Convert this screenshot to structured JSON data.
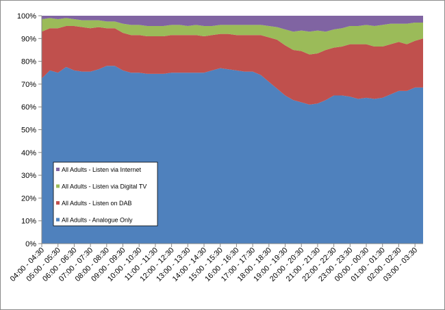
{
  "chart_data": {
    "type": "area",
    "stacked": true,
    "percent_scale": true,
    "categories": [
      "04:00 - 04:30",
      "05:00 - 05:30",
      "06:00 - 06:30",
      "07:00 - 07:30",
      "08:00 - 08:30",
      "09:00 - 09:30",
      "10:00 - 10:30",
      "11:00 - 11:30",
      "12:00 - 12:30",
      "13:00 - 13:30",
      "14:00 - 14:30",
      "15:00 - 15:30",
      "16:00 - 16:30",
      "17:00 - 17:30",
      "18:00 - 18:30",
      "19:00 - 19:30",
      "20:00 - 20:30",
      "21:00 - 21:30",
      "22:00 - 22:30",
      "23:00 - 23:30",
      "00:00 - 00:30",
      "01:00 - 01:30",
      "02:00 - 02:30",
      "03:00 - 03:30"
    ],
    "x_values": [
      0,
      0.5,
      1,
      1.5,
      2,
      2.5,
      3,
      3.5,
      4,
      4.5,
      5,
      5.5,
      6,
      6.5,
      7,
      7.5,
      8,
      8.5,
      9,
      9.5,
      10,
      10.5,
      11,
      11.5,
      12,
      12.5,
      13,
      13.5,
      14,
      14.5,
      15,
      15.5,
      16,
      16.5,
      17,
      17.5,
      18,
      18.5,
      19,
      19.5,
      20,
      20.5,
      21,
      21.5,
      22,
      22.5,
      23,
      23.5
    ],
    "series": [
      {
        "name": "All Adults - Analogue Only",
        "color": "#4f81bd",
        "values": [
          72.5,
          76,
          75,
          77.5,
          76,
          75.5,
          75.5,
          76.5,
          78,
          78,
          76,
          75,
          75,
          74.5,
          74.5,
          74.5,
          75,
          75,
          75,
          75,
          75,
          76,
          77,
          76.5,
          76,
          75.5,
          75.5,
          74,
          71,
          68,
          65,
          63,
          62,
          61,
          61.5,
          63,
          65,
          65,
          64.5,
          63.5,
          64,
          63.5,
          64,
          65.5,
          67,
          67,
          68.5,
          68.5
        ]
      },
      {
        "name": "All Adults - Listen on DAB",
        "color": "#c0504d",
        "values": [
          20.5,
          18.5,
          19.5,
          18,
          19.5,
          19.5,
          19,
          18.5,
          16.5,
          16.5,
          16.5,
          16.5,
          16.5,
          16.5,
          16.5,
          16.5,
          16.5,
          16.5,
          16.5,
          16.5,
          16,
          15.5,
          15,
          15.5,
          15.5,
          16,
          16,
          17.5,
          19.5,
          21.5,
          22,
          22,
          22.5,
          22,
          22,
          22,
          21,
          21.5,
          23,
          24,
          23.5,
          23,
          22.5,
          22,
          21.5,
          20.5,
          20.5,
          21.5
        ]
      },
      {
        "name": "All Adults - Listen via Digital TV",
        "color": "#9bbb59",
        "values": [
          5.5,
          4.5,
          4,
          3.5,
          3,
          3,
          3.5,
          3,
          3,
          3,
          4,
          4.5,
          4.5,
          4.5,
          4.5,
          4.5,
          4.5,
          4.5,
          4,
          4.5,
          4.5,
          4,
          4,
          4,
          4.5,
          4.5,
          4.5,
          4.5,
          5,
          5.5,
          7,
          8,
          9,
          10,
          10,
          8,
          8,
          8,
          8,
          8,
          8.5,
          9,
          9.5,
          9,
          8,
          9,
          8,
          7
        ]
      },
      {
        "name": "All Adults - Listen via Internet",
        "color": "#8064a2",
        "values": [
          1.5,
          1,
          1.5,
          1,
          1.5,
          2,
          2,
          2,
          2.5,
          2.5,
          3.5,
          4,
          4,
          4.5,
          4.5,
          4.5,
          4.5,
          4,
          4.5,
          4,
          4.5,
          4.5,
          4,
          4,
          4,
          4,
          4,
          4,
          4.5,
          5,
          6,
          7,
          6.5,
          7,
          6.5,
          7,
          6,
          5.5,
          4.5,
          4.5,
          4,
          4.5,
          4,
          3.5,
          3.5,
          3.5,
          3,
          3
        ]
      }
    ],
    "y_ticks": [
      "0%",
      "10%",
      "20%",
      "30%",
      "40%",
      "50%",
      "60%",
      "70%",
      "80%",
      "90%",
      "100%"
    ],
    "ylim": [
      0,
      100
    ],
    "grid": false,
    "legend_order": [
      "All Adults - Listen via Internet",
      "All Adults - Listen via Digital TV",
      "All Adults - Listen on DAB",
      "All Adults - Analogue Only"
    ],
    "legend_placement": "left-center inside plot"
  }
}
